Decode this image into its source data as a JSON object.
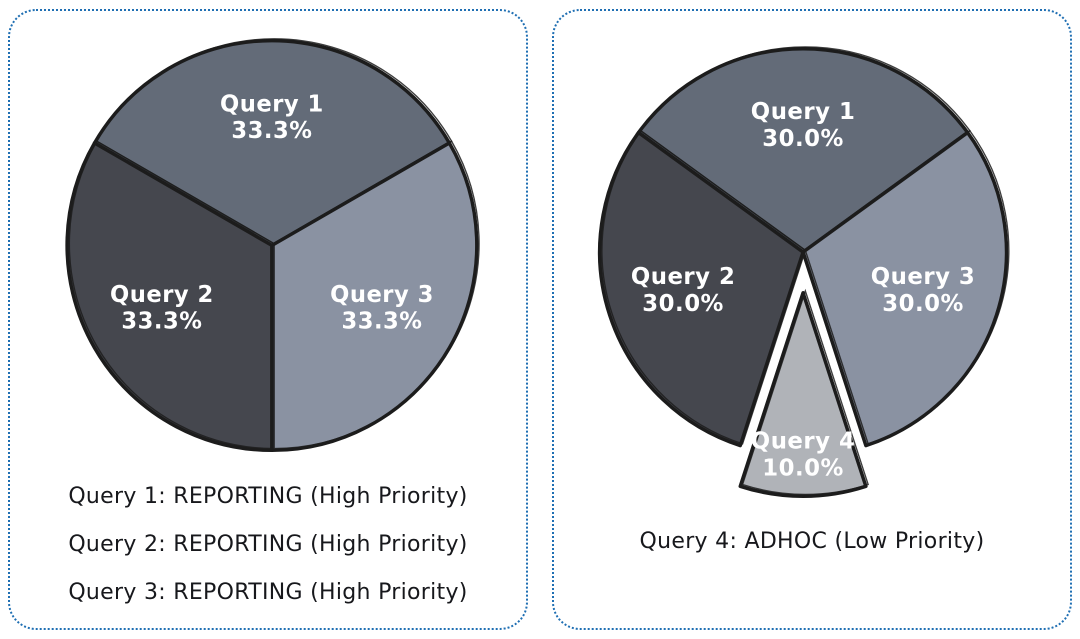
{
  "style": {
    "background": "#ffffff",
    "panel_border_color": "#1f6fb3",
    "outline_color": "#1c1c1c",
    "slice_label_color": "#ffffff",
    "legend_text_color": "#17181c"
  },
  "chart_data": [
    {
      "type": "pie",
      "title": "",
      "start_angle": 30,
      "direction": "counterclockwise",
      "slices": [
        {
          "label": "Query 1",
          "value": 33.3,
          "pct_label": "33.3%",
          "color": "#636b78",
          "explode": 0
        },
        {
          "label": "Query 2",
          "value": 33.3,
          "pct_label": "33.3%",
          "color": "#45474e",
          "explode": 0
        },
        {
          "label": "Query 3",
          "value": 33.3,
          "pct_label": "33.3%",
          "color": "#8a92a2",
          "explode": 0
        }
      ],
      "legend": [
        "Query 1: REPORTING (High Priority)",
        "Query 2: REPORTING (High Priority)",
        "Query 3: REPORTING (High Priority)"
      ]
    },
    {
      "type": "pie",
      "title": "",
      "start_angle": 36,
      "direction": "counterclockwise",
      "slices": [
        {
          "label": "Query 1",
          "value": 30.0,
          "pct_label": "30.0%",
          "color": "#636b78",
          "explode": 0
        },
        {
          "label": "Query 2",
          "value": 30.0,
          "pct_label": "30.0%",
          "color": "#45474e",
          "explode": 0
        },
        {
          "label": "Query 4",
          "value": 10.0,
          "pct_label": "10.0%",
          "color": "#b0b3b8",
          "explode": 0.2
        },
        {
          "label": "Query 3",
          "value": 30.0,
          "pct_label": "30.0%",
          "color": "#8a92a2",
          "explode": 0
        }
      ],
      "legend": [
        "Query 4: ADHOC (Low Priority)"
      ]
    }
  ]
}
